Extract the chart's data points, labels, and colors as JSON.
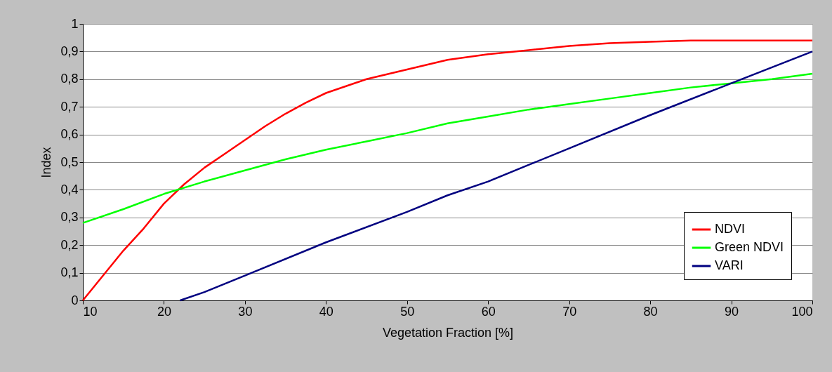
{
  "chart_data": {
    "type": "line",
    "xlabel": "Vegetation Fraction [%]",
    "ylabel": "Index",
    "xlim": [
      10,
      100
    ],
    "xticks": [
      10,
      20,
      30,
      40,
      50,
      60,
      70,
      80,
      90,
      100
    ],
    "ylim": [
      0,
      1
    ],
    "yticks": [
      0,
      {
        "value": 0.1,
        "label": "0,1"
      },
      {
        "value": 0.2,
        "label": "0,2"
      },
      {
        "value": 0.3,
        "label": "0,3"
      },
      {
        "value": 0.4,
        "label": "0,4"
      },
      {
        "value": 0.5,
        "label": "0,5"
      },
      {
        "value": 0.6,
        "label": "0,6"
      },
      {
        "value": 0.7,
        "label": "0,7"
      },
      {
        "value": 0.8,
        "label": "0,8"
      },
      {
        "value": 0.9,
        "label": "0,9"
      },
      1
    ],
    "grid": "y",
    "legend": "bottom right",
    "series": [
      {
        "name": "NDVI",
        "color": "#ff0000",
        "x": [
          10,
          12.5,
          15,
          17.5,
          20,
          22.5,
          25,
          27.5,
          30,
          32.5,
          35,
          37.5,
          40,
          45,
          50,
          55,
          60,
          65,
          70,
          75,
          80,
          85,
          90,
          100
        ],
        "values": [
          0,
          0.09,
          0.18,
          0.26,
          0.35,
          0.42,
          0.48,
          0.53,
          0.58,
          0.63,
          0.675,
          0.715,
          0.75,
          0.8,
          0.835,
          0.87,
          0.89,
          0.905,
          0.92,
          0.93,
          0.935,
          0.94,
          0.94,
          0.94
        ]
      },
      {
        "name": "Green NDVI",
        "color": "#00ff00",
        "x": [
          10,
          15,
          20,
          25,
          30,
          35,
          40,
          45,
          50,
          55,
          60,
          65,
          70,
          75,
          80,
          85,
          90,
          95,
          100
        ],
        "values": [
          0.28,
          0.33,
          0.385,
          0.43,
          0.47,
          0.51,
          0.545,
          0.575,
          0.605,
          0.64,
          0.665,
          0.69,
          0.71,
          0.73,
          0.75,
          0.77,
          0.785,
          0.8,
          0.82
        ]
      },
      {
        "name": "VARI",
        "color": "#000080",
        "x": [
          22,
          25,
          30,
          40,
          50,
          55,
          60,
          65,
          70,
          80,
          90,
          100
        ],
        "values": [
          0,
          0.03,
          0.09,
          0.21,
          0.32,
          0.38,
          0.43,
          0.49,
          0.55,
          0.67,
          0.785,
          0.9
        ]
      }
    ]
  }
}
